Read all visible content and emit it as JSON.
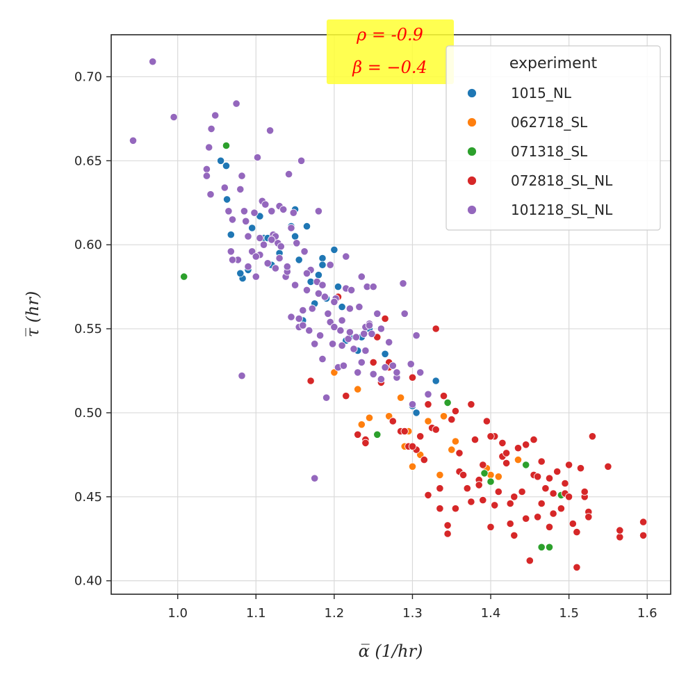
{
  "chart_data": {
    "type": "scatter",
    "title": "",
    "xlabel": "α̅ (1/hr)",
    "ylabel": "τ̅ (hr)",
    "xlim": [
      0.915,
      1.63
    ],
    "ylim": [
      0.392,
      0.725
    ],
    "xticks": [
      "1.0",
      "1.1",
      "1.2",
      "1.3",
      "1.4",
      "1.5",
      "1.6"
    ],
    "yticks": [
      "0.40",
      "0.45",
      "0.50",
      "0.55",
      "0.60",
      "0.65",
      "0.70"
    ],
    "grid": true,
    "legend": {
      "title": "experiment",
      "position": "top-right"
    },
    "annotation": {
      "lines": [
        "ρ = -0.9",
        "β = −0.4"
      ],
      "background": "#ffff33",
      "color": "#ff0000",
      "position": "top-center"
    },
    "series": [
      {
        "name": "1015_NL",
        "color": "#1f77b4",
        "x": [
          1.055,
          1.062,
          1.063,
          1.068,
          1.083,
          1.09,
          1.095,
          1.105,
          1.11,
          1.115,
          1.12,
          1.13,
          1.14,
          1.145,
          1.15,
          1.155,
          1.16,
          1.165,
          1.175,
          1.18,
          1.185,
          1.19,
          1.2,
          1.205,
          1.21,
          1.22,
          1.23,
          1.235,
          1.245,
          1.265,
          1.3,
          1.305,
          1.33,
          1.08,
          1.15,
          1.17,
          1.185,
          1.215
        ],
        "y": [
          0.65,
          0.647,
          0.627,
          0.606,
          0.58,
          0.585,
          0.61,
          0.617,
          0.604,
          0.604,
          0.588,
          0.595,
          0.586,
          0.611,
          0.621,
          0.591,
          0.555,
          0.611,
          0.565,
          0.582,
          0.592,
          0.568,
          0.597,
          0.575,
          0.563,
          0.545,
          0.537,
          0.545,
          0.55,
          0.535,
          0.504,
          0.5,
          0.519,
          0.583,
          0.605,
          0.578,
          0.588,
          0.543
        ]
      },
      {
        "name": "062718_SL",
        "color": "#ff7f0e",
        "x": [
          1.2,
          1.23,
          1.235,
          1.245,
          1.27,
          1.285,
          1.29,
          1.295,
          1.3,
          1.31,
          1.32,
          1.335,
          1.34,
          1.35,
          1.355,
          1.395,
          1.4,
          1.41,
          1.435
        ],
        "y": [
          0.524,
          0.514,
          0.493,
          0.497,
          0.498,
          0.509,
          0.48,
          0.489,
          0.468,
          0.475,
          0.495,
          0.463,
          0.498,
          0.478,
          0.483,
          0.467,
          0.463,
          0.462,
          0.472
        ]
      },
      {
        "name": "071318_SL",
        "color": "#2ca02c",
        "x": [
          1.008,
          1.062,
          1.255,
          1.345,
          1.392,
          1.4,
          1.445,
          1.465,
          1.475,
          1.49
        ],
        "y": [
          0.581,
          0.659,
          0.487,
          0.506,
          0.464,
          0.459,
          0.469,
          0.42,
          0.42,
          0.451
        ]
      },
      {
        "name": "072818_SL_NL",
        "color": "#d62728",
        "x": [
          1.17,
          1.205,
          1.215,
          1.23,
          1.24,
          1.25,
          1.255,
          1.26,
          1.265,
          1.27,
          1.275,
          1.28,
          1.285,
          1.29,
          1.295,
          1.3,
          1.305,
          1.31,
          1.315,
          1.32,
          1.325,
          1.33,
          1.335,
          1.34,
          1.345,
          1.35,
          1.355,
          1.36,
          1.365,
          1.37,
          1.375,
          1.38,
          1.385,
          1.39,
          1.395,
          1.4,
          1.405,
          1.41,
          1.415,
          1.42,
          1.425,
          1.43,
          1.435,
          1.44,
          1.445,
          1.45,
          1.455,
          1.46,
          1.465,
          1.47,
          1.475,
          1.48,
          1.485,
          1.49,
          1.495,
          1.5,
          1.505,
          1.51,
          1.515,
          1.52,
          1.525,
          1.53,
          1.55,
          1.565,
          1.595,
          1.345,
          1.355,
          1.375,
          1.405,
          1.425,
          1.455,
          1.475,
          1.51,
          1.335,
          1.36,
          1.385,
          1.415,
          1.445,
          1.465,
          1.495,
          1.32,
          1.4,
          1.43,
          1.48,
          1.52,
          1.24,
          1.27,
          1.3,
          1.33,
          1.39,
          1.42,
          1.46,
          1.5,
          1.525,
          1.565,
          1.595
        ],
        "y": [
          0.519,
          0.569,
          0.51,
          0.487,
          0.484,
          0.53,
          0.545,
          0.518,
          0.556,
          0.527,
          0.495,
          0.521,
          0.489,
          0.489,
          0.48,
          0.521,
          0.478,
          0.486,
          0.472,
          0.451,
          0.491,
          0.55,
          0.455,
          0.51,
          0.428,
          0.496,
          0.443,
          0.465,
          0.463,
          0.455,
          0.505,
          0.484,
          0.46,
          0.469,
          0.495,
          0.432,
          0.445,
          0.453,
          0.482,
          0.47,
          0.446,
          0.427,
          0.479,
          0.453,
          0.481,
          0.412,
          0.484,
          0.438,
          0.471,
          0.455,
          0.461,
          0.452,
          0.465,
          0.443,
          0.452,
          0.45,
          0.434,
          0.429,
          0.467,
          0.45,
          0.441,
          0.486,
          0.468,
          0.426,
          0.427,
          0.433,
          0.501,
          0.447,
          0.486,
          0.434,
          0.463,
          0.432,
          0.408,
          0.443,
          0.476,
          0.457,
          0.474,
          0.437,
          0.446,
          0.458,
          0.505,
          0.486,
          0.45,
          0.44,
          0.453,
          0.482,
          0.53,
          0.48,
          0.49,
          0.448,
          0.476,
          0.462,
          0.469,
          0.438,
          0.43,
          0.435
        ]
      },
      {
        "name": "101218_SL_NL",
        "color": "#9467bd",
        "x": [
          0.943,
          0.968,
          0.995,
          1.037,
          1.037,
          1.04,
          1.042,
          1.043,
          1.048,
          1.06,
          1.065,
          1.068,
          1.07,
          1.075,
          1.077,
          1.08,
          1.082,
          1.085,
          1.087,
          1.09,
          1.095,
          1.098,
          1.1,
          1.102,
          1.105,
          1.108,
          1.11,
          1.112,
          1.115,
          1.118,
          1.12,
          1.122,
          1.125,
          1.128,
          1.13,
          1.132,
          1.135,
          1.138,
          1.14,
          1.142,
          1.145,
          1.148,
          1.15,
          1.152,
          1.155,
          1.158,
          1.16,
          1.162,
          1.165,
          1.168,
          1.17,
          1.172,
          1.175,
          1.178,
          1.18,
          1.182,
          1.185,
          1.188,
          1.19,
          1.192,
          1.195,
          1.198,
          1.2,
          1.202,
          1.205,
          1.208,
          1.21,
          1.212,
          1.215,
          1.218,
          1.22,
          1.222,
          1.225,
          1.228,
          1.23,
          1.232,
          1.235,
          1.238,
          1.24,
          1.242,
          1.245,
          1.248,
          1.25,
          1.255,
          1.26,
          1.265,
          1.27,
          1.275,
          1.28,
          1.288,
          1.29,
          1.298,
          1.305,
          1.31,
          1.32,
          1.082,
          1.175,
          1.07,
          1.1,
          1.125,
          1.145,
          1.165,
          1.195,
          1.215,
          1.235,
          1.25,
          1.09,
          1.12,
          1.14,
          1.16,
          1.18,
          1.2,
          1.22,
          1.24,
          1.26,
          1.28,
          1.3,
          1.105,
          1.13,
          1.155,
          1.185,
          1.21,
          1.245
        ],
        "y": [
          0.662,
          0.709,
          0.676,
          0.645,
          0.641,
          0.658,
          0.63,
          0.669,
          0.677,
          0.634,
          0.62,
          0.596,
          0.615,
          0.684,
          0.591,
          0.633,
          0.641,
          0.62,
          0.614,
          0.587,
          0.596,
          0.619,
          0.581,
          0.652,
          0.594,
          0.626,
          0.6,
          0.624,
          0.589,
          0.668,
          0.62,
          0.606,
          0.586,
          0.601,
          0.623,
          0.599,
          0.621,
          0.581,
          0.584,
          0.642,
          0.557,
          0.619,
          0.576,
          0.601,
          0.551,
          0.65,
          0.561,
          0.596,
          0.573,
          0.549,
          0.585,
          0.562,
          0.541,
          0.578,
          0.62,
          0.546,
          0.532,
          0.569,
          0.509,
          0.559,
          0.554,
          0.541,
          0.551,
          0.568,
          0.527,
          0.549,
          0.555,
          0.528,
          0.574,
          0.544,
          0.562,
          0.573,
          0.538,
          0.545,
          0.524,
          0.563,
          0.53,
          0.547,
          0.551,
          0.575,
          0.553,
          0.547,
          0.523,
          0.559,
          0.55,
          0.527,
          0.542,
          0.528,
          0.521,
          0.577,
          0.559,
          0.529,
          0.546,
          0.524,
          0.511,
          0.522,
          0.461,
          0.591,
          0.593,
          0.605,
          0.61,
          0.583,
          0.588,
          0.593,
          0.581,
          0.575,
          0.605,
          0.603,
          0.587,
          0.552,
          0.571,
          0.566,
          0.548,
          0.537,
          0.52,
          0.524,
          0.505,
          0.604,
          0.592,
          0.556,
          0.576,
          0.54,
          0.552
        ]
      }
    ]
  }
}
